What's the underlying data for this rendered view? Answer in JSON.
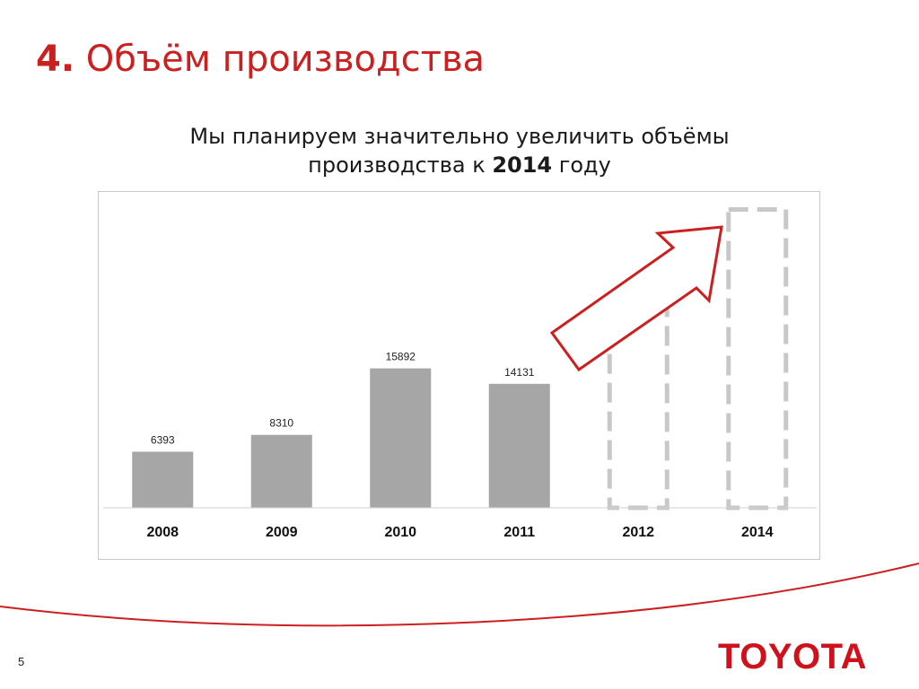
{
  "slide": {
    "title_number": "4.",
    "title_text": "Объём производства",
    "subtitle_line1": "Мы планируем значительно увеличить объёмы",
    "subtitle_line2_pre": "производства к ",
    "subtitle_line2_bold": "2014",
    "subtitle_line2_post": " году",
    "page_number": "5",
    "logo_text": "TOYOTA"
  },
  "colors": {
    "accent": "#cc1f1f",
    "bar": "#a6a6a6",
    "planned_outline": "#c8c8c8",
    "logo": "#d0101b"
  },
  "chart_data": {
    "type": "bar",
    "categories": [
      "2008",
      "2009",
      "2010",
      "2011",
      "2012",
      "2014"
    ],
    "values": [
      6393,
      8310,
      15892,
      14131,
      null,
      null
    ],
    "value_labels": [
      "6393",
      "8310",
      "15892",
      "14131",
      "",
      ""
    ],
    "planned": [
      false,
      false,
      false,
      false,
      true,
      true
    ],
    "planned_values_estimated": [
      null,
      null,
      null,
      null,
      24000,
      34000
    ],
    "ylim": [
      0,
      36000
    ],
    "grid": false,
    "annotation": "red-upward-arrow"
  }
}
